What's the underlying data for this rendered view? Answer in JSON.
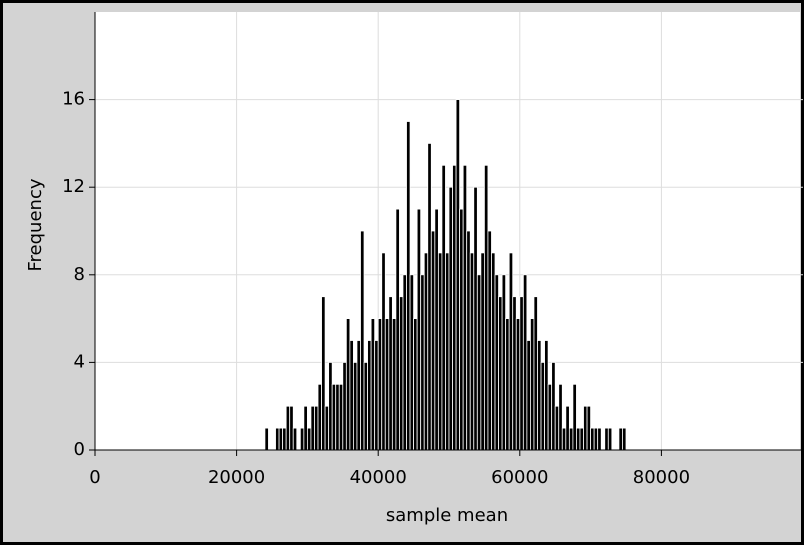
{
  "chart_data": {
    "type": "histogram",
    "x_label": "sample mean",
    "y_label": "Frequency",
    "bins": [
      24000,
      24500,
      25000,
      25500,
      26000,
      26500,
      27000,
      27500,
      28000,
      28500,
      29000,
      29500,
      30000,
      30500,
      31000,
      31500,
      32000,
      32500,
      33000,
      33500,
      34000,
      34500,
      35000,
      35500,
      36000,
      36500,
      37000,
      37500,
      38000,
      38500,
      39000,
      39500,
      40000,
      40500,
      41000,
      41500,
      42000,
      42500,
      43000,
      43500,
      44000,
      44500,
      45000,
      45500,
      46000,
      46500,
      47000,
      47500,
      48000,
      48500,
      49000,
      49500,
      50000,
      50500,
      51000,
      51500,
      52000,
      52500,
      53000,
      53500,
      54000,
      54500,
      55000,
      55500,
      56000,
      56500,
      57000,
      57500,
      58000,
      58500,
      59000,
      59500,
      60000,
      60500,
      61000,
      61500,
      62000,
      62500,
      63000,
      63500,
      64000,
      64500,
      65000,
      65500,
      66000,
      66500,
      67000,
      67500,
      68000,
      68500,
      69000,
      69500,
      70000,
      70500,
      71000,
      71500,
      72000,
      72500,
      73000,
      73500,
      74000,
      74500,
      75000
    ],
    "values": [
      1,
      0,
      0,
      1,
      1,
      1,
      2,
      2,
      1,
      0,
      1,
      2,
      1,
      2,
      2,
      3,
      7,
      2,
      4,
      3,
      3,
      3,
      4,
      6,
      5,
      4,
      5,
      10,
      4,
      5,
      6,
      5,
      6,
      9,
      6,
      7,
      6,
      11,
      7,
      8,
      15,
      8,
      6,
      11,
      8,
      9,
      14,
      10,
      11,
      9,
      13,
      9,
      12,
      13,
      16,
      11,
      13,
      10,
      9,
      12,
      8,
      9,
      13,
      10,
      9,
      8,
      7,
      8,
      6,
      9,
      7,
      6,
      7,
      8,
      5,
      6,
      7,
      5,
      4,
      5,
      3,
      4,
      2,
      3,
      1,
      2,
      1,
      3,
      1,
      1,
      2,
      2,
      1,
      1,
      1,
      0,
      1,
      1,
      0,
      0,
      1,
      1
    ],
    "color": "#000000",
    "xlim": [
      0,
      100000
    ],
    "xticks": [
      0,
      20000,
      40000,
      60000,
      80000
    ],
    "ylim": [
      0,
      20
    ],
    "yticks": [
      0,
      4,
      8,
      12,
      16
    ],
    "grid": true
  }
}
